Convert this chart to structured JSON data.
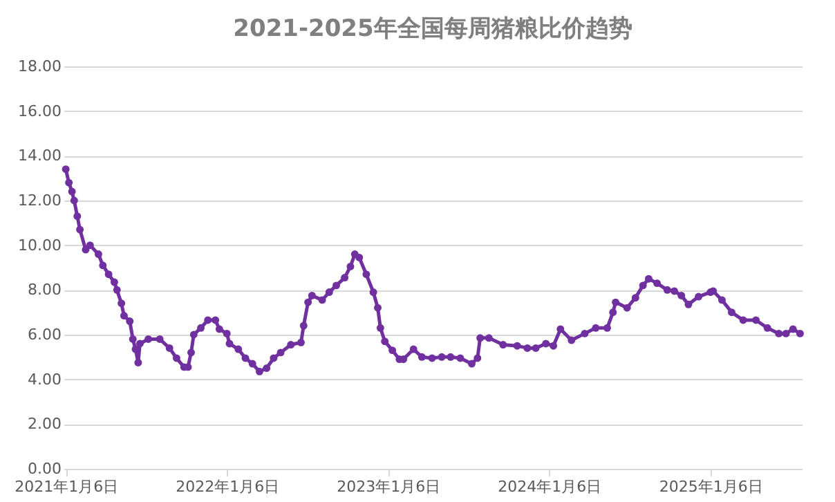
{
  "chart_data": {
    "type": "line",
    "title": "2021-2025年全国每周猪粮比价趋势",
    "x": [
      "2021-01-06",
      "2021-01-13",
      "2021-01-20",
      "2021-01-25",
      "2021-02-01",
      "2021-02-07",
      "2021-02-20",
      "2021-03-02",
      "2021-03-21",
      "2021-03-31",
      "2021-04-13",
      "2021-04-26",
      "2021-05-02",
      "2021-05-12",
      "2021-05-18",
      "2021-05-31",
      "2021-06-07",
      "2021-06-13",
      "2021-06-19",
      "2021-06-23",
      "2021-07-12",
      "2021-08-07",
      "2021-08-29",
      "2021-09-14",
      "2021-10-01",
      "2021-10-10",
      "2021-10-17",
      "2021-10-23",
      "2021-11-08",
      "2021-11-24",
      "2021-12-11",
      "2021-12-20",
      "2022-01-06",
      "2022-01-12",
      "2022-02-01",
      "2022-02-17",
      "2022-03-05",
      "2022-03-21",
      "2022-04-06",
      "2022-04-22",
      "2022-05-08",
      "2022-05-31",
      "2022-06-23",
      "2022-06-29",
      "2022-07-09",
      "2022-07-18",
      "2022-08-10",
      "2022-08-26",
      "2022-09-11",
      "2022-09-30",
      "2022-10-13",
      "2022-10-23",
      "2022-11-02",
      "2022-11-18",
      "2022-12-04",
      "2022-12-14",
      "2022-12-20",
      "2022-12-30",
      "2023-01-16",
      "2023-02-01",
      "2023-02-10",
      "2023-03-05",
      "2023-03-24",
      "2023-04-16",
      "2023-05-08",
      "2023-05-28",
      "2023-06-19",
      "2023-07-15",
      "2023-07-28",
      "2023-08-03",
      "2023-08-23",
      "2023-09-24",
      "2023-10-26",
      "2023-11-18",
      "2023-12-07",
      "2023-12-30",
      "2024-01-16",
      "2024-02-01",
      "2024-02-26",
      "2024-03-27",
      "2024-04-21",
      "2024-05-17",
      "2024-05-30",
      "2024-06-05",
      "2024-07-01",
      "2024-07-20",
      "2024-08-06",
      "2024-08-19",
      "2024-09-07",
      "2024-09-30",
      "2024-10-16",
      "2024-11-01",
      "2024-11-17",
      "2024-12-10",
      "2025-01-06",
      "2025-01-12",
      "2025-02-01",
      "2025-02-23",
      "2025-03-21",
      "2025-04-19",
      "2025-05-15",
      "2025-06-10",
      "2025-06-26",
      "2025-07-12",
      "2025-07-28"
    ],
    "series": [
      {
        "color": "#7030a0",
        "values": [
          13.4,
          12.8,
          12.4,
          12.0,
          11.3,
          10.7,
          9.8,
          10.0,
          9.6,
          9.1,
          8.7,
          8.35,
          8.0,
          7.4,
          6.85,
          6.6,
          5.8,
          5.35,
          4.75,
          5.6,
          5.8,
          5.8,
          5.4,
          4.95,
          4.55,
          4.55,
          5.2,
          6.0,
          6.3,
          6.65,
          6.65,
          6.25,
          6.05,
          5.6,
          5.35,
          4.95,
          4.7,
          4.35,
          4.5,
          4.95,
          5.2,
          5.55,
          5.65,
          6.4,
          7.45,
          7.75,
          7.55,
          7.9,
          8.2,
          8.55,
          9.05,
          9.6,
          9.45,
          8.7,
          7.9,
          7.2,
          6.3,
          5.7,
          5.3,
          4.9,
          4.9,
          5.35,
          5.0,
          4.95,
          5.0,
          5.0,
          4.95,
          4.7,
          4.95,
          5.85,
          5.85,
          5.55,
          5.5,
          5.4,
          5.4,
          5.6,
          5.5,
          6.25,
          5.75,
          6.05,
          6.3,
          6.3,
          7.0,
          7.45,
          7.2,
          7.65,
          8.2,
          8.5,
          8.3,
          8.0,
          7.95,
          7.75,
          7.35,
          7.7,
          7.9,
          7.95,
          7.55,
          7.0,
          6.65,
          6.65,
          6.3,
          6.05,
          6.05,
          6.25,
          6.05
        ]
      }
    ],
    "xlim": [
      "2021-01-01",
      "2025-08-01"
    ],
    "xticks": [
      {
        "value": "2021-01-06",
        "label": "2021年1月6日"
      },
      {
        "value": "2022-01-06",
        "label": "2022年1月6日"
      },
      {
        "value": "2023-01-06",
        "label": "2023年1月6日"
      },
      {
        "value": "2024-01-06",
        "label": "2024年1月6日"
      },
      {
        "value": "2025-01-06",
        "label": "2025年1月6日"
      }
    ],
    "ylim": [
      0,
      18
    ],
    "yticks": [
      {
        "value": 0,
        "label": "0.00"
      },
      {
        "value": 2,
        "label": "2.00"
      },
      {
        "value": 4,
        "label": "4.00"
      },
      {
        "value": 6,
        "label": "6.00"
      },
      {
        "value": 8,
        "label": "8.00"
      },
      {
        "value": 10,
        "label": "10.00"
      },
      {
        "value": 12,
        "label": "12.00"
      },
      {
        "value": 14,
        "label": "14.00"
      },
      {
        "value": 16,
        "label": "16.00"
      },
      {
        "value": 18,
        "label": "18.00"
      }
    ],
    "grid": "y",
    "marker": "circle",
    "line_style": "solid"
  }
}
